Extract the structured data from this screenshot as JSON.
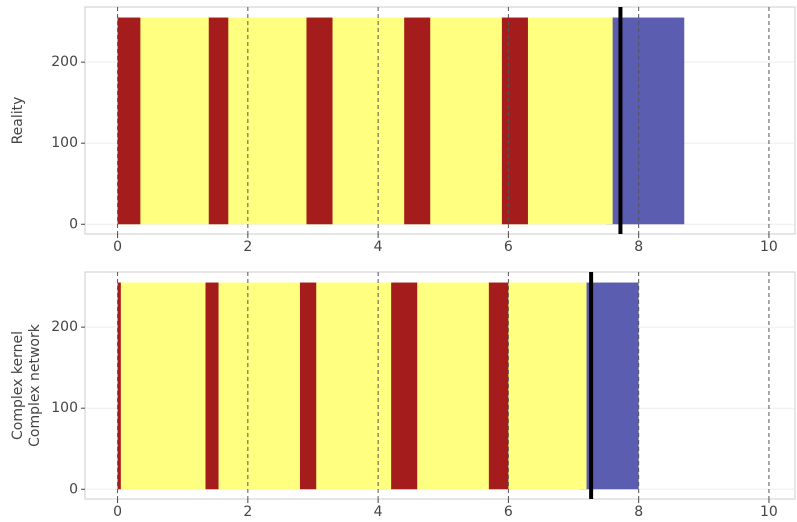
{
  "chart_data": [
    {
      "type": "raster",
      "ylabel": [
        "Reality"
      ],
      "xlim": [
        -0.5,
        10.4
      ],
      "ylim": [
        -12,
        268
      ],
      "xticks": [
        0,
        2,
        4,
        6,
        8,
        10
      ],
      "yticks": [
        0,
        100,
        200
      ],
      "vline": 7.72,
      "regions": [
        {
          "x": [
            7.5,
            8.7
          ],
          "y": [
            0,
            255
          ],
          "color": "#5a5db0"
        },
        {
          "x": [
            0,
            7.6
          ],
          "y": [
            0,
            255
          ],
          "color": "#ffff80"
        },
        {
          "x": [
            0,
            0.35
          ],
          "y": [
            0,
            255
          ],
          "color": "#a51c1c"
        },
        {
          "x": [
            1.4,
            1.7
          ],
          "y": [
            0,
            255
          ],
          "color": "#a51c1c"
        },
        {
          "x": [
            2.9,
            3.3
          ],
          "y": [
            0,
            255
          ],
          "color": "#a51c1c"
        },
        {
          "x": [
            4.4,
            4.8
          ],
          "y": [
            0,
            255
          ],
          "color": "#a51c1c"
        },
        {
          "x": [
            5.9,
            6.3
          ],
          "y": [
            0,
            255
          ],
          "color": "#a51c1c"
        }
      ]
    },
    {
      "type": "raster",
      "ylabel": [
        "Complex kernel",
        "Complex network"
      ],
      "xlim": [
        -0.5,
        10.4
      ],
      "ylim": [
        -12,
        268
      ],
      "xticks": [
        0,
        2,
        4,
        6,
        8,
        10
      ],
      "yticks": [
        0,
        100,
        200
      ],
      "vline": 7.27,
      "regions": [
        {
          "x": [
            7.1,
            8.0
          ],
          "y": [
            0,
            255
          ],
          "color": "#5a5db0"
        },
        {
          "x": [
            0,
            7.2
          ],
          "y": [
            0,
            255
          ],
          "color": "#ffff80"
        },
        {
          "x": [
            0,
            0.05
          ],
          "y": [
            0,
            255
          ],
          "color": "#a51c1c"
        },
        {
          "x": [
            1.35,
            1.55
          ],
          "y": [
            0,
            255
          ],
          "color": "#a51c1c"
        },
        {
          "x": [
            2.8,
            3.05
          ],
          "y": [
            0,
            255
          ],
          "color": "#a51c1c"
        },
        {
          "x": [
            4.2,
            4.6
          ],
          "y": [
            0,
            255
          ],
          "color": "#a51c1c"
        },
        {
          "x": [
            5.7,
            6.0
          ],
          "y": [
            0,
            255
          ],
          "color": "#a51c1c"
        }
      ]
    }
  ]
}
